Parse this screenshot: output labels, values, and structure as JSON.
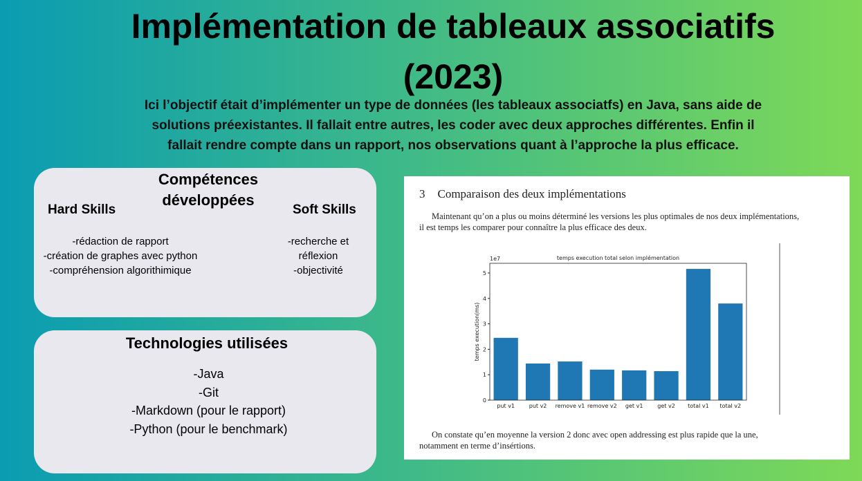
{
  "header": {
    "title": [
      "Implémentation de tableaux associatifs",
      "(2023)"
    ],
    "description": [
      "Ici l’objectif était d’implémenter un type de données (les tableaux associatfs) en Java, sans aide de",
      "solutions préexistantes.  Il fallait entre autres, les coder avec deux approches différentes. Enfin il",
      "fallait rendre compte dans un rapport, nos observations quant à l’approche la plus efficace."
    ]
  },
  "skills": {
    "title": "Compétences développées",
    "hard_title": "Hard Skills",
    "hard_items": [
      "-rédaction de rapport",
      "-création de graphes avec python",
      "-compréhension algorithimique"
    ],
    "soft_title": "Soft Skills",
    "soft_items": [
      "-recherche et réflexion",
      "-objectivité"
    ]
  },
  "technologies": {
    "title": "Technologies utilisées",
    "items": [
      "-Java",
      "-Git",
      "-Markdown (pour le rapport)",
      "-Python (pour le benchmark)"
    ]
  },
  "doc": {
    "section_number": "3",
    "heading": "Comparaison des deux implémentations",
    "paragraph1": [
      "Maintenant qu’on a plus ou moins déterminé les versions les plus optimales de nos deux implémentations,",
      "il est temps les comparer pour connaître la plus efficace des deux."
    ],
    "paragraph2": [
      "On constate qu’en moyenne la version 2 donc avec open addressing est plus rapide que la une,",
      "notamment en terme d’insértions."
    ]
  },
  "chart_data": {
    "type": "bar",
    "title": "temps execution total selon implémentation",
    "y_label": "temps execution(ms)",
    "y_offset_label": "1e7",
    "categories": [
      "put v1",
      "put v2",
      "remove v1",
      "remove v2",
      "get v1",
      "get v2",
      "total v1",
      "total v2"
    ],
    "values": [
      2.45,
      1.44,
      1.52,
      1.2,
      1.17,
      1.14,
      5.16,
      3.8
    ],
    "color": "#1f77b4",
    "ylim": [
      0,
      5.38
    ],
    "yticks": [
      0,
      1,
      2,
      3,
      4,
      5
    ]
  }
}
